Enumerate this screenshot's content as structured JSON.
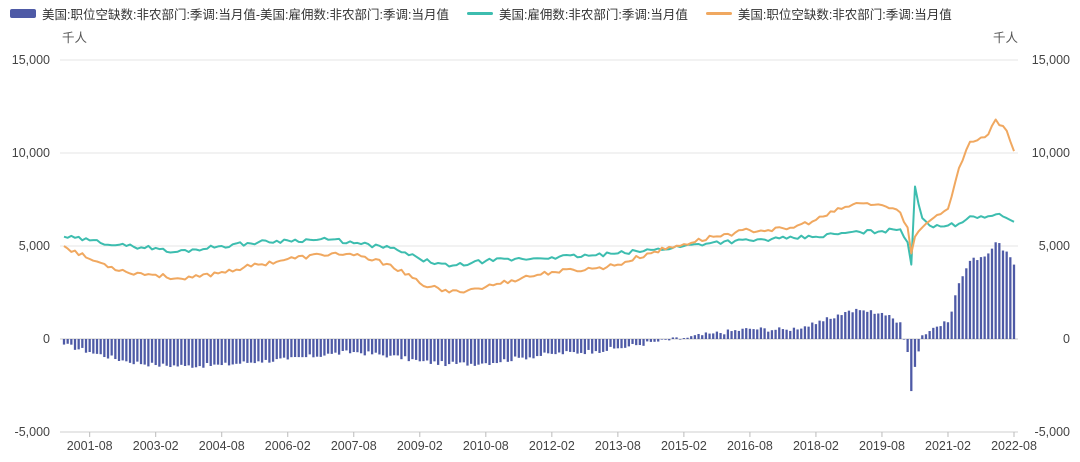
{
  "chart_data": {
    "type": "bar+line",
    "y_unit_left": "千人",
    "y_unit_right": "千人",
    "ylim": [
      -5000,
      15000
    ],
    "left_ticks": [
      "15,000",
      "10,000",
      "5,000",
      "0",
      "-5,000"
    ],
    "right_ticks": [
      "15,000",
      "10,000",
      "5,000",
      "0",
      "-5,000"
    ],
    "x_tick_labels": [
      "2001-08",
      "2003-02",
      "2004-08",
      "2006-02",
      "2007-08",
      "2009-02",
      "2010-08",
      "2012-02",
      "2013-08",
      "2015-02",
      "2016-08",
      "2018-02",
      "2019-08",
      "2021-02",
      "2022-08"
    ],
    "x_start": "2001-01",
    "x_end": "2022-08",
    "grid": true,
    "legend_position": "top-left",
    "series": [
      {
        "name": "美国:职位空缺数:非农部门:季调:当月值-美国:雇佣数:非农部门:季调:当月值",
        "type": "bar",
        "color": "#4e5aa6",
        "anchors": [
          [
            "2001-01",
            -300
          ],
          [
            "2001-08",
            -700
          ],
          [
            "2002-06",
            -1200
          ],
          [
            "2003-02",
            -1400
          ],
          [
            "2003-10",
            -1450
          ],
          [
            "2004-08",
            -1400
          ],
          [
            "2005-06",
            -1200
          ],
          [
            "2006-02",
            -1100
          ],
          [
            "2007-02",
            -800
          ],
          [
            "2007-08",
            -700
          ],
          [
            "2008-06",
            -900
          ],
          [
            "2009-02",
            -1200
          ],
          [
            "2009-10",
            -1350
          ],
          [
            "2010-08",
            -1300
          ],
          [
            "2011-06",
            -1000
          ],
          [
            "2012-02",
            -800
          ],
          [
            "2013-02",
            -650
          ],
          [
            "2013-08",
            -500
          ],
          [
            "2014-06",
            -150
          ],
          [
            "2015-02",
            50
          ],
          [
            "2015-10",
            300
          ],
          [
            "2016-08",
            550
          ],
          [
            "2017-06",
            500
          ],
          [
            "2018-02",
            800
          ],
          [
            "2018-10",
            1450
          ],
          [
            "2019-02",
            1550
          ],
          [
            "2019-08",
            1400
          ],
          [
            "2020-01",
            900
          ],
          [
            "2020-03",
            -700
          ],
          [
            "2020-04",
            -2800
          ],
          [
            "2020-05",
            -1500
          ],
          [
            "2020-07",
            200
          ],
          [
            "2020-10",
            600
          ],
          [
            "2021-02",
            900
          ],
          [
            "2021-05",
            3000
          ],
          [
            "2021-08",
            4200
          ],
          [
            "2022-01",
            4600
          ],
          [
            "2022-03",
            5200
          ],
          [
            "2022-06",
            4700
          ],
          [
            "2022-08",
            4000
          ]
        ]
      },
      {
        "name": "美国:雇佣数:非农部门:季调:当月值",
        "type": "line",
        "color": "#3dbdaf",
        "anchors": [
          [
            "2001-01",
            5500
          ],
          [
            "2001-08",
            5300
          ],
          [
            "2002-06",
            5000
          ],
          [
            "2003-02",
            4900
          ],
          [
            "2003-06",
            4650
          ],
          [
            "2004-08",
            5000
          ],
          [
            "2005-06",
            5200
          ],
          [
            "2006-02",
            5300
          ],
          [
            "2007-02",
            5350
          ],
          [
            "2007-08",
            5150
          ],
          [
            "2008-06",
            4900
          ],
          [
            "2009-02",
            4300
          ],
          [
            "2009-10",
            3900
          ],
          [
            "2010-08",
            4200
          ],
          [
            "2011-06",
            4300
          ],
          [
            "2012-02",
            4400
          ],
          [
            "2013-02",
            4500
          ],
          [
            "2013-08",
            4600
          ],
          [
            "2014-06",
            4800
          ],
          [
            "2015-02",
            5000
          ],
          [
            "2015-10",
            5200
          ],
          [
            "2016-08",
            5300
          ],
          [
            "2017-06",
            5400
          ],
          [
            "2018-02",
            5500
          ],
          [
            "2018-10",
            5700
          ],
          [
            "2019-08",
            5800
          ],
          [
            "2020-01",
            5900
          ],
          [
            "2020-03",
            5200
          ],
          [
            "2020-04",
            4000
          ],
          [
            "2020-05",
            8200
          ],
          [
            "2020-07",
            6500
          ],
          [
            "2020-10",
            6000
          ],
          [
            "2021-02",
            6100
          ],
          [
            "2021-05",
            6200
          ],
          [
            "2021-08",
            6600
          ],
          [
            "2022-01",
            6600
          ],
          [
            "2022-03",
            6700
          ],
          [
            "2022-06",
            6500
          ],
          [
            "2022-08",
            6300
          ]
        ]
      },
      {
        "name": "美国:职位空缺数:非农部门:季调:当月值",
        "type": "line",
        "color": "#f0a860",
        "anchors": [
          [
            "2001-01",
            5000
          ],
          [
            "2001-08",
            4300
          ],
          [
            "2002-06",
            3600
          ],
          [
            "2003-02",
            3450
          ],
          [
            "2003-10",
            3200
          ],
          [
            "2004-08",
            3600
          ],
          [
            "2005-06",
            4000
          ],
          [
            "2006-02",
            4300
          ],
          [
            "2007-02",
            4600
          ],
          [
            "2007-08",
            4500
          ],
          [
            "2008-06",
            4000
          ],
          [
            "2009-02",
            3000
          ],
          [
            "2009-10",
            2500
          ],
          [
            "2010-08",
            2800
          ],
          [
            "2011-06",
            3300
          ],
          [
            "2012-02",
            3600
          ],
          [
            "2013-02",
            3800
          ],
          [
            "2013-08",
            4000
          ],
          [
            "2014-06",
            4700
          ],
          [
            "2015-02",
            5100
          ],
          [
            "2015-10",
            5500
          ],
          [
            "2016-08",
            5850
          ],
          [
            "2017-06",
            5900
          ],
          [
            "2018-02",
            6400
          ],
          [
            "2018-10",
            7100
          ],
          [
            "2019-02",
            7300
          ],
          [
            "2019-08",
            7200
          ],
          [
            "2020-01",
            6800
          ],
          [
            "2020-03",
            6000
          ],
          [
            "2020-04",
            4600
          ],
          [
            "2020-05",
            5500
          ],
          [
            "2020-07",
            6000
          ],
          [
            "2020-10",
            6500
          ],
          [
            "2021-02",
            7000
          ],
          [
            "2021-05",
            9200
          ],
          [
            "2021-08",
            10600
          ],
          [
            "2022-01",
            11000
          ],
          [
            "2022-03",
            11800
          ],
          [
            "2022-06",
            11200
          ],
          [
            "2022-08",
            10100
          ]
        ]
      }
    ]
  }
}
